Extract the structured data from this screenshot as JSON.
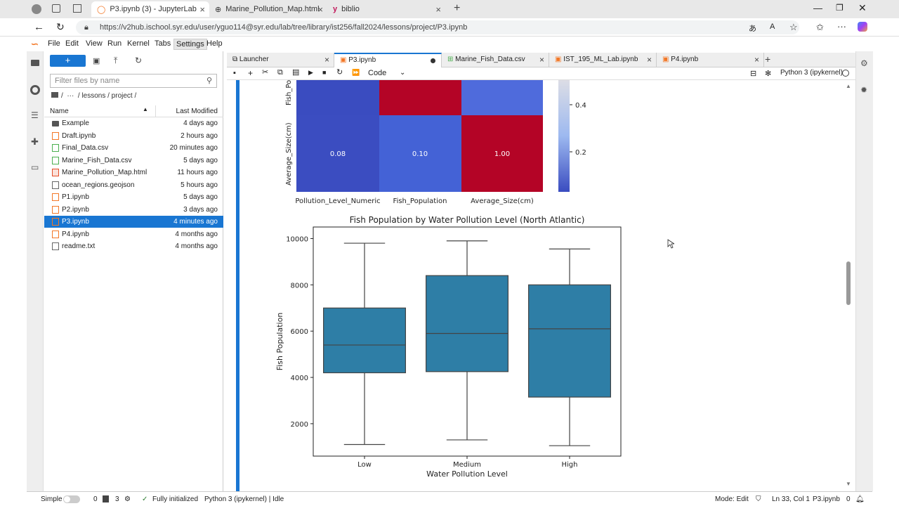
{
  "browser": {
    "tabs": [
      {
        "label": "P3.ipynb (3) - JupyterLab"
      },
      {
        "label": "Marine_Pollution_Map.html"
      },
      {
        "label": "biblio"
      }
    ],
    "url": "https://v2hub.ischool.syr.edu/user/yguo114@syr.edu/lab/tree/library/ist256/fall2024/lessons/project/P3.ipynb"
  },
  "menu": [
    "File",
    "Edit",
    "View",
    "Run",
    "Kernel",
    "Tabs",
    "Settings",
    "Help"
  ],
  "filebrowser": {
    "new_button": "+",
    "filter_placeholder": "Filter files by name",
    "breadcrumb": "/  ···  / lessons / project /",
    "col_name": "Name",
    "col_modified": "Last Modified",
    "files": [
      {
        "name": "Example",
        "modified": "4 days ago",
        "type": "folder"
      },
      {
        "name": "Draft.ipynb",
        "modified": "2 hours ago",
        "type": "notebook"
      },
      {
        "name": "Final_Data.csv",
        "modified": "20 minutes ago",
        "type": "csv"
      },
      {
        "name": "Marine_Fish_Data.csv",
        "modified": "5 days ago",
        "type": "csv"
      },
      {
        "name": "Marine_Pollution_Map.html",
        "modified": "11 hours ago",
        "type": "html"
      },
      {
        "name": "ocean_regions.geojson",
        "modified": "5 hours ago",
        "type": "file"
      },
      {
        "name": "P1.ipynb",
        "modified": "5 days ago",
        "type": "notebook"
      },
      {
        "name": "P2.ipynb",
        "modified": "3 days ago",
        "type": "notebook"
      },
      {
        "name": "P3.ipynb",
        "modified": "4 minutes ago",
        "type": "notebook"
      },
      {
        "name": "P4.ipynb",
        "modified": "4 months ago",
        "type": "notebook"
      },
      {
        "name": "readme.txt",
        "modified": "4 months ago",
        "type": "file"
      }
    ]
  },
  "notebook_tabs": [
    {
      "label": "Launcher"
    },
    {
      "label": "P3.ipynb"
    },
    {
      "label": "Marine_Fish_Data.csv"
    },
    {
      "label": "IST_195_ML_Lab.ipynb"
    },
    {
      "label": "P4.ipynb"
    }
  ],
  "toolbar": {
    "cell_type": "Code",
    "kernel": "Python 3 (ipykernel)"
  },
  "heatmap": {
    "ylabels": [
      "Fish_Po",
      "Average_Size(cm)"
    ],
    "xlabels": [
      "Pollution_Level_Numeric",
      "Fish_Population",
      "Average_Size(cm)"
    ],
    "row_values": [
      "0.08",
      "0.10",
      "1.00"
    ],
    "colorbar_ticks": [
      "0.4",
      "0.2"
    ]
  },
  "chart_data": {
    "type": "box",
    "title": "Fish Population by Water Pollution Level (North Atlantic)",
    "xlabel": "Water Pollution Level",
    "ylabel": "Fish Population",
    "categories": [
      "Low",
      "Medium",
      "High"
    ],
    "ylim": [
      600,
      10500
    ],
    "yticks": [
      2000,
      4000,
      6000,
      8000,
      10000
    ],
    "boxes": [
      {
        "min": 1100,
        "q1": 4200,
        "median": 5400,
        "q3": 7000,
        "max": 9800
      },
      {
        "min": 1300,
        "q1": 4250,
        "median": 5900,
        "q3": 8400,
        "max": 9900
      },
      {
        "min": 1050,
        "q1": 3150,
        "median": 6100,
        "q3": 8000,
        "max": 9550
      }
    ],
    "color": "#2e7ea6"
  },
  "status": {
    "mode_label": "Simple",
    "count1": "0",
    "count2": "3",
    "init": "Fully initialized",
    "kernel_state": "Python 3 (ipykernel) | Idle",
    "mode": "Mode: Edit",
    "position": "Ln 33, Col 1",
    "file": "P3.ipynb",
    "notifications": "0"
  }
}
